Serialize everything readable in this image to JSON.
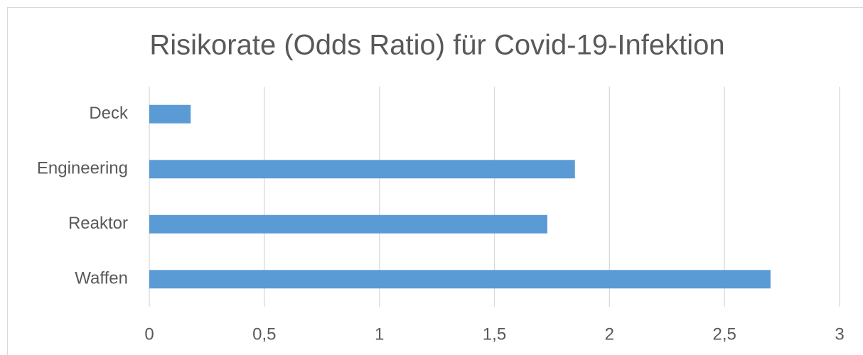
{
  "chart_data": {
    "type": "barh",
    "title": "Risikorate (Odds Ratio) für Covid-19-Infektion",
    "categories": [
      "Deck",
      "Engineering",
      "Reaktor",
      "Waffen"
    ],
    "values": [
      0.18,
      1.85,
      1.73,
      2.7
    ],
    "color": "#5b9bd5",
    "xlim": [
      0,
      3
    ],
    "xticks": [
      0,
      {
        "value": 0.5,
        "label": "0,5"
      },
      1,
      {
        "value": 1.5,
        "label": "1,5"
      },
      2,
      {
        "value": 2.5,
        "label": "2,5"
      },
      3
    ],
    "grid": true
  }
}
